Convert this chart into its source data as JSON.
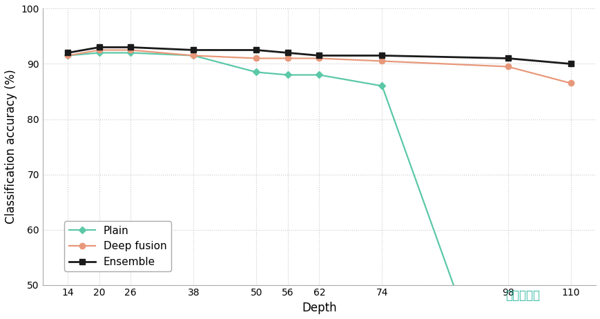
{
  "plain_x": [
    14,
    20,
    26,
    38,
    50,
    56,
    62,
    74,
    88
  ],
  "plain_y": [
    91.5,
    92.0,
    92.0,
    91.5,
    88.5,
    88.0,
    88.0,
    86.0,
    49.0
  ],
  "deep_fusion_x": [
    14,
    20,
    26,
    38,
    50,
    56,
    62,
    74,
    98,
    110
  ],
  "deep_fusion_y": [
    91.5,
    92.5,
    92.5,
    91.5,
    91.0,
    91.0,
    91.0,
    90.5,
    89.5,
    86.5
  ],
  "ensemble_x": [
    14,
    20,
    26,
    38,
    50,
    56,
    62,
    74,
    98,
    110
  ],
  "ensemble_y": [
    92.0,
    93.0,
    93.0,
    92.5,
    92.5,
    92.0,
    91.5,
    91.5,
    91.0,
    90.0
  ],
  "plain_color": "#5bc8a8",
  "deep_fusion_color": "#e8987a",
  "ensemble_color": "#1a1a1a",
  "ylabel": "Classification accuracy (%)",
  "xlabel": "Depth",
  "ylim": [
    50,
    100
  ],
  "yticks": [
    50,
    60,
    70,
    80,
    90,
    100
  ],
  "xticks": [
    14,
    20,
    26,
    38,
    50,
    56,
    62,
    74,
    98,
    110
  ],
  "grid_color": "#c8c8c8",
  "bg_color": "#ffffff",
  "watermark": "姐己导航网",
  "watermark_color": "#30b8a0"
}
